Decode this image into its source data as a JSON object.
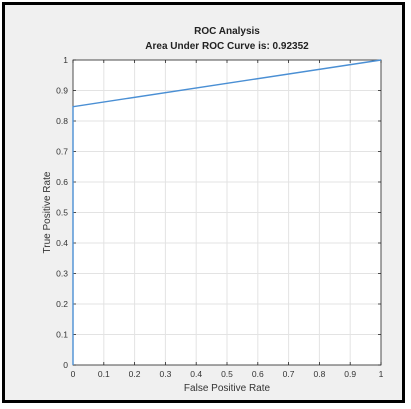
{
  "chart_data": {
    "type": "line",
    "title": "ROC Analysis",
    "subtitle": "Area Under ROC Curve is: 0.92352",
    "xlabel": "False Positive Rate",
    "ylabel": "True Positive Rate",
    "xlim": [
      0,
      1
    ],
    "ylim": [
      0,
      1
    ],
    "grid": true,
    "xticks": [
      "0",
      "0.1",
      "0.2",
      "0.3",
      "0.4",
      "0.5",
      "0.6",
      "0.7",
      "0.8",
      "0.9",
      "1"
    ],
    "yticks": [
      "0",
      "0.1",
      "0.2",
      "0.3",
      "0.4",
      "0.5",
      "0.6",
      "0.7",
      "0.8",
      "0.9",
      "1"
    ],
    "series": [
      {
        "color": "#4a8fd4",
        "points": [
          [
            0,
            0
          ],
          [
            0,
            0.847
          ],
          [
            1,
            1
          ]
        ]
      }
    ]
  }
}
